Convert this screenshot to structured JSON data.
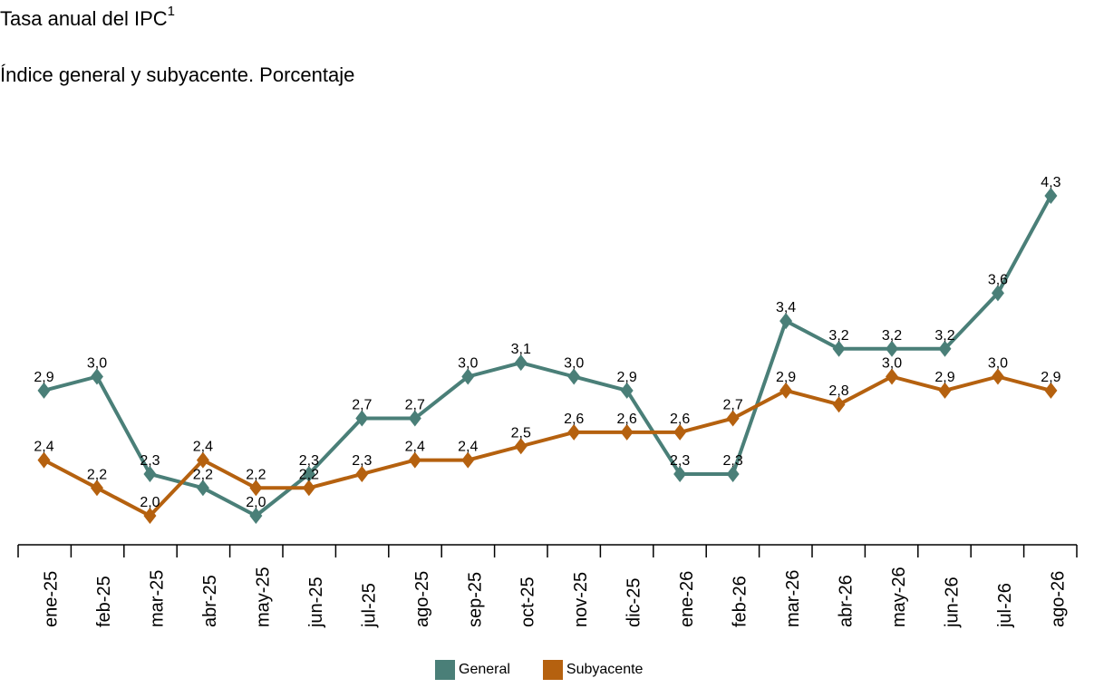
{
  "header": {
    "title": "Tasa anual del IPC",
    "title_sup": "1",
    "subtitle": "Índice general y subyacente. Porcentaje"
  },
  "colors": {
    "general": "#4a7f78",
    "subyacente": "#b5610f"
  },
  "chart_data": {
    "type": "line",
    "title": "Tasa anual del IPC",
    "subtitle": "Índice general y subyacente. Porcentaje",
    "categories": [
      "ene-25",
      "feb-25",
      "mar-25",
      "abr-25",
      "may-25",
      "jun-25",
      "jul-25",
      "ago-25",
      "sep-25",
      "oct-25",
      "nov-25",
      "dic-25",
      "ene-26",
      "feb-26",
      "mar-26",
      "abr-26",
      "may-26",
      "jun-26",
      "jul-26",
      "ago-26"
    ],
    "series": [
      {
        "name": "General",
        "values": [
          2.9,
          3.0,
          2.3,
          2.2,
          2.0,
          2.3,
          2.7,
          2.7,
          3.0,
          3.1,
          3.0,
          2.9,
          2.3,
          2.3,
          3.4,
          3.2,
          3.2,
          3.2,
          3.6,
          4.3
        ]
      },
      {
        "name": "Subyacente",
        "values": [
          2.4,
          2.2,
          2.0,
          2.4,
          2.2,
          2.2,
          2.3,
          2.4,
          2.4,
          2.5,
          2.6,
          2.6,
          2.6,
          2.7,
          2.9,
          2.8,
          3.0,
          2.9,
          3.0,
          2.9
        ]
      }
    ],
    "data_labels": [
      [
        "2,9",
        "3,0",
        "2,3",
        "2,2",
        "2,0",
        "2,3",
        "2,7",
        "2,7",
        "3,0",
        "3,1",
        "3,0",
        "2,9",
        "2,3",
        "2,3",
        "3,4",
        "3,2",
        "3,2",
        "3,2",
        "3,6",
        "4,3"
      ],
      [
        "2,4",
        "2,2",
        "2,0",
        "2,4",
        "2,2",
        "2,2",
        "2,3",
        "2,4",
        "2,4",
        "2,5",
        "2,6",
        "2,6",
        "2,6",
        "2,7",
        "2,9",
        "2,8",
        "3,0",
        "2,9",
        "3,0",
        "2,9"
      ]
    ],
    "xlabel": "",
    "ylabel": "",
    "grid": false,
    "legend": "bottom-center"
  },
  "legend": {
    "general": "General",
    "subyacente": "Subyacente"
  }
}
